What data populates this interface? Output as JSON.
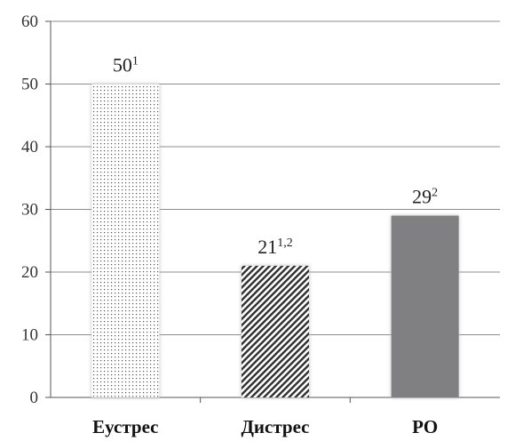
{
  "chart_data": {
    "type": "bar",
    "categories": [
      "Еустрес",
      "Дистрес",
      "РО"
    ],
    "values": [
      50,
      21,
      29
    ],
    "data_labels": [
      {
        "value": "50",
        "superscript": "1"
      },
      {
        "value": "21",
        "superscript": "1,2"
      },
      {
        "value": "29",
        "superscript": "2"
      }
    ],
    "ylim": [
      0,
      60
    ],
    "yticks": [
      "0",
      "10",
      "20",
      "30",
      "40",
      "50",
      "60"
    ],
    "grid": true,
    "bar_styles": [
      "dots",
      "diagonal-hatch",
      "solid"
    ],
    "colors": {
      "bar_solid": "#808083",
      "hatch": "#2e2e2e",
      "dots": "#555555",
      "grid": "#8c8c8c",
      "axis": "#555555"
    }
  }
}
